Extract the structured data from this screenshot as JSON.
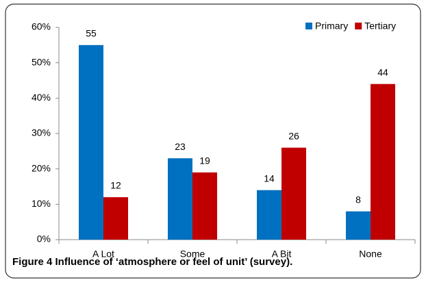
{
  "chart_data": {
    "type": "bar",
    "caption": "Figure 4 Influence of ‘atmosphere or feel of unit’ (survey).",
    "categories": [
      "A Lot",
      "Some",
      "A Bit",
      "None"
    ],
    "series": [
      {
        "name": "Primary",
        "color": "#0070c0",
        "values": [
          55,
          23,
          14,
          8
        ]
      },
      {
        "name": "Tertiary",
        "color": "#c00000",
        "values": [
          12,
          19,
          26,
          44
        ]
      }
    ],
    "ylim": [
      0,
      60
    ],
    "yticks": [
      {
        "value": 0,
        "label": "0%"
      },
      {
        "value": 10,
        "label": "10%"
      },
      {
        "value": 20,
        "label": "20%"
      },
      {
        "value": 30,
        "label": "30%"
      },
      {
        "value": 40,
        "label": "40%"
      },
      {
        "value": 50,
        "label": "50%"
      },
      {
        "value": 60,
        "label": "60%"
      }
    ],
    "legend": "top-right"
  }
}
